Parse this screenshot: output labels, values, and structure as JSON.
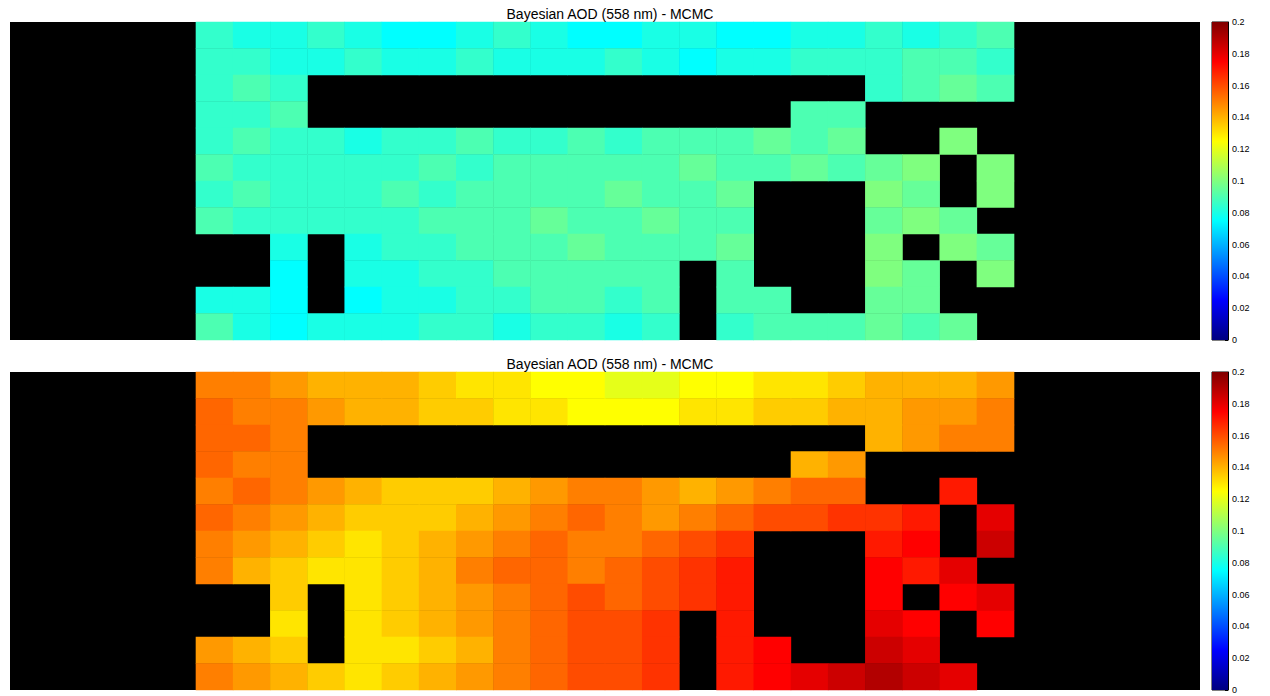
{
  "chart_data": [
    {
      "type": "heatmap",
      "title": "Bayesian AOD (558 nm) - MCMC",
      "tick_labels": false,
      "colorbar": {
        "range": [
          0,
          0.2
        ],
        "ticks": [
          0,
          0.02,
          0.04,
          0.06,
          0.08,
          0.1,
          0.12,
          0.14,
          0.16,
          0.18,
          0.2
        ]
      },
      "cells": [
        [
          null,
          null,
          null,
          null,
          null,
          0.085,
          0.08,
          0.08,
          0.085,
          0.08,
          0.075,
          0.075,
          0.08,
          0.085,
          0.08,
          0.075,
          0.075,
          0.08,
          0.08,
          0.075,
          0.075,
          0.08,
          0.08,
          0.085,
          0.08,
          0.085,
          0.09,
          null,
          null,
          null,
          null,
          null
        ],
        [
          null,
          null,
          null,
          null,
          null,
          0.085,
          0.085,
          0.08,
          0.08,
          0.085,
          0.08,
          0.08,
          0.085,
          0.08,
          0.08,
          0.08,
          0.085,
          0.08,
          0.075,
          0.08,
          0.08,
          0.085,
          0.085,
          0.085,
          0.09,
          0.09,
          0.085,
          null,
          null,
          null,
          null,
          null
        ],
        [
          null,
          null,
          null,
          null,
          null,
          0.085,
          0.09,
          0.085,
          null,
          null,
          null,
          null,
          null,
          null,
          null,
          null,
          null,
          null,
          null,
          null,
          null,
          null,
          null,
          0.085,
          0.09,
          0.095,
          0.09,
          null,
          null,
          null,
          null,
          null
        ],
        [
          null,
          null,
          null,
          null,
          null,
          0.085,
          0.085,
          0.09,
          null,
          null,
          null,
          null,
          null,
          null,
          null,
          null,
          null,
          null,
          null,
          null,
          null,
          0.09,
          0.09,
          null,
          null,
          null,
          null,
          null,
          null,
          null,
          null,
          null
        ],
        [
          null,
          null,
          null,
          null,
          null,
          0.085,
          0.09,
          0.085,
          0.085,
          0.08,
          0.085,
          0.085,
          0.09,
          0.085,
          0.085,
          0.09,
          0.085,
          0.09,
          0.09,
          0.09,
          0.095,
          0.09,
          0.095,
          null,
          null,
          0.1,
          null,
          null,
          null,
          null,
          null,
          null
        ],
        [
          null,
          null,
          null,
          null,
          null,
          0.09,
          0.085,
          0.085,
          0.085,
          0.085,
          0.085,
          0.09,
          0.085,
          0.09,
          0.09,
          0.09,
          0.09,
          0.09,
          0.095,
          0.09,
          0.09,
          0.095,
          0.09,
          0.095,
          0.1,
          null,
          0.1,
          null,
          null,
          null,
          null,
          null
        ],
        [
          null,
          null,
          null,
          null,
          null,
          0.085,
          0.09,
          0.085,
          0.085,
          0.085,
          0.09,
          0.085,
          0.09,
          0.09,
          0.09,
          0.09,
          0.095,
          0.09,
          0.09,
          0.095,
          null,
          null,
          null,
          0.1,
          0.095,
          null,
          0.1,
          null,
          null,
          null,
          null,
          null
        ],
        [
          null,
          null,
          null,
          null,
          null,
          0.09,
          0.085,
          0.085,
          0.085,
          0.085,
          0.085,
          0.09,
          0.09,
          0.09,
          0.095,
          0.09,
          0.09,
          0.095,
          0.09,
          0.09,
          null,
          null,
          null,
          0.095,
          0.1,
          0.095,
          null,
          null,
          null,
          null,
          null,
          null
        ],
        [
          null,
          null,
          null,
          null,
          null,
          null,
          null,
          0.08,
          null,
          0.08,
          0.085,
          0.085,
          0.09,
          0.09,
          0.09,
          0.095,
          0.09,
          0.09,
          0.09,
          0.095,
          null,
          null,
          null,
          0.1,
          null,
          0.1,
          0.095,
          null,
          null,
          null,
          null,
          null
        ],
        [
          null,
          null,
          null,
          null,
          null,
          null,
          null,
          0.075,
          null,
          0.08,
          0.08,
          0.085,
          0.085,
          0.09,
          0.09,
          0.09,
          0.09,
          0.09,
          null,
          0.09,
          null,
          null,
          null,
          0.1,
          0.095,
          null,
          0.1,
          null,
          null,
          null,
          null,
          null
        ],
        [
          null,
          null,
          null,
          null,
          null,
          0.08,
          0.08,
          0.075,
          null,
          0.075,
          0.08,
          0.08,
          0.085,
          0.085,
          0.09,
          0.09,
          0.085,
          0.09,
          null,
          0.09,
          0.09,
          null,
          null,
          0.095,
          0.095,
          null,
          null,
          null,
          null,
          null,
          null,
          null
        ],
        [
          null,
          null,
          null,
          null,
          null,
          0.09,
          0.08,
          0.075,
          0.08,
          0.08,
          0.08,
          0.085,
          0.085,
          0.08,
          0.085,
          0.085,
          0.08,
          0.085,
          null,
          0.085,
          0.09,
          0.09,
          0.09,
          0.095,
          0.09,
          0.095,
          null,
          null,
          null,
          null,
          null,
          null
        ]
      ]
    },
    {
      "type": "heatmap",
      "title": "Bayesian AOD (558 nm) - MCMC",
      "tick_labels": false,
      "colorbar": {
        "range": [
          0,
          0.2
        ],
        "ticks": [
          0,
          0.02,
          0.04,
          0.06,
          0.08,
          0.1,
          0.12,
          0.14,
          0.16,
          0.18,
          0.2
        ]
      },
      "cells": [
        [
          null,
          null,
          null,
          null,
          null,
          0.15,
          0.15,
          0.145,
          0.14,
          0.14,
          0.14,
          0.135,
          0.13,
          0.13,
          0.125,
          0.125,
          0.12,
          0.12,
          0.125,
          0.125,
          0.13,
          0.13,
          0.135,
          0.14,
          0.14,
          0.14,
          0.145,
          null,
          null,
          null,
          null,
          null
        ],
        [
          null,
          null,
          null,
          null,
          null,
          0.155,
          0.15,
          0.15,
          0.145,
          0.14,
          0.14,
          0.135,
          0.135,
          0.13,
          0.13,
          0.125,
          0.125,
          0.125,
          0.13,
          0.13,
          0.135,
          0.135,
          0.14,
          0.14,
          0.145,
          0.145,
          0.15,
          null,
          null,
          null,
          null,
          null
        ],
        [
          null,
          null,
          null,
          null,
          null,
          0.155,
          0.155,
          0.15,
          null,
          null,
          null,
          null,
          null,
          null,
          null,
          null,
          null,
          null,
          null,
          null,
          null,
          null,
          null,
          0.14,
          0.145,
          0.15,
          0.15,
          null,
          null,
          null,
          null,
          null
        ],
        [
          null,
          null,
          null,
          null,
          null,
          0.155,
          0.15,
          0.15,
          null,
          null,
          null,
          null,
          null,
          null,
          null,
          null,
          null,
          null,
          null,
          null,
          null,
          0.14,
          0.145,
          null,
          null,
          null,
          null,
          null,
          null,
          null,
          null,
          null
        ],
        [
          null,
          null,
          null,
          null,
          null,
          0.15,
          0.155,
          0.15,
          0.145,
          0.14,
          0.135,
          0.135,
          0.135,
          0.14,
          0.145,
          0.15,
          0.15,
          0.145,
          0.14,
          0.145,
          0.15,
          0.155,
          0.155,
          null,
          null,
          0.17,
          null,
          null,
          null,
          null,
          null,
          null
        ],
        [
          null,
          null,
          null,
          null,
          null,
          0.155,
          0.15,
          0.145,
          0.14,
          0.135,
          0.135,
          0.135,
          0.14,
          0.145,
          0.15,
          0.155,
          0.15,
          0.145,
          0.15,
          0.155,
          0.16,
          0.16,
          0.165,
          0.165,
          0.17,
          null,
          0.18,
          null,
          null,
          null,
          null,
          null
        ],
        [
          null,
          null,
          null,
          null,
          null,
          0.15,
          0.145,
          0.14,
          0.135,
          0.13,
          0.135,
          0.14,
          0.145,
          0.15,
          0.155,
          0.15,
          0.15,
          0.155,
          0.16,
          0.165,
          null,
          null,
          null,
          0.17,
          0.175,
          null,
          0.185,
          null,
          null,
          null,
          null,
          null
        ],
        [
          null,
          null,
          null,
          null,
          null,
          0.15,
          0.14,
          0.135,
          0.13,
          0.13,
          0.135,
          0.14,
          0.15,
          0.155,
          0.155,
          0.15,
          0.155,
          0.16,
          0.165,
          0.17,
          null,
          null,
          null,
          0.175,
          0.17,
          0.18,
          null,
          null,
          null,
          null,
          null,
          null
        ],
        [
          null,
          null,
          null,
          null,
          null,
          null,
          null,
          0.135,
          null,
          0.13,
          0.135,
          0.14,
          0.145,
          0.15,
          0.155,
          0.16,
          0.155,
          0.16,
          0.165,
          0.17,
          null,
          null,
          null,
          0.175,
          null,
          0.175,
          0.18,
          null,
          null,
          null,
          null,
          null
        ],
        [
          null,
          null,
          null,
          null,
          null,
          null,
          null,
          0.13,
          null,
          0.13,
          0.135,
          0.14,
          0.145,
          0.15,
          0.155,
          0.16,
          0.16,
          0.165,
          null,
          0.17,
          null,
          null,
          null,
          0.18,
          0.175,
          null,
          0.175,
          null,
          null,
          null,
          null,
          null
        ],
        [
          null,
          null,
          null,
          null,
          null,
          0.145,
          0.14,
          0.135,
          null,
          0.13,
          0.13,
          0.135,
          0.14,
          0.15,
          0.155,
          0.16,
          0.16,
          0.165,
          null,
          0.17,
          0.175,
          null,
          null,
          0.185,
          0.18,
          null,
          null,
          null,
          null,
          null,
          null,
          null
        ],
        [
          null,
          null,
          null,
          null,
          null,
          0.15,
          0.145,
          0.14,
          0.135,
          0.13,
          0.135,
          0.14,
          0.145,
          0.15,
          0.155,
          0.16,
          0.16,
          0.165,
          null,
          0.17,
          0.175,
          0.18,
          0.185,
          0.19,
          0.185,
          0.18,
          null,
          null,
          null,
          null,
          null,
          null
        ]
      ]
    }
  ]
}
